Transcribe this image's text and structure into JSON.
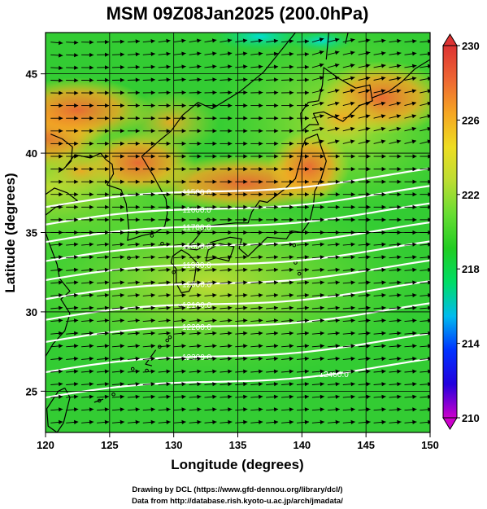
{
  "title": "MSM 09Z08Jan2025 (200.0hPa)",
  "xlabel": "Longitude (degrees)",
  "ylabel": "Latitude (degrees)",
  "credits": [
    "Drawing by DCL (https://www.gfd-dennou.org/library/dcl/)",
    "Data from http://database.rish.kyoto-u.ac.jp/arch/jmadata/"
  ],
  "map": {
    "lon_range": [
      120,
      150
    ],
    "lat_range": [
      22.4,
      47.6
    ],
    "lon_ticks": [
      120,
      125,
      130,
      135,
      140,
      145,
      150
    ],
    "lat_ticks": [
      25,
      30,
      35,
      40,
      45
    ],
    "grid": true
  },
  "colorbar": {
    "min": 210,
    "max": 230,
    "ticks": [
      210,
      214,
      218,
      222,
      226,
      230
    ],
    "colors": [
      "#cc00cc",
      "#2200dd",
      "#0033ff",
      "#00bbee",
      "#00dd66",
      "#22cc22",
      "#66dd33",
      "#bbdd33",
      "#eedd22",
      "#f5a623",
      "#ee6633",
      "#dd3333"
    ]
  },
  "contours": [
    {
      "label": "11500.0",
      "lat0": 36.6
    },
    {
      "label": "11600.0",
      "lat0": 35.5
    },
    {
      "label": "11700.0",
      "lat0": 34.4
    },
    {
      "label": "11800.0",
      "lat0": 33.2
    },
    {
      "label": "11900.0",
      "lat0": 32.0
    },
    {
      "label": "12000.0",
      "lat0": 30.8
    },
    {
      "label": "12100.0",
      "lat0": 29.5
    },
    {
      "label": "12200.0",
      "lat0": 28.1
    },
    {
      "label": "12300.0",
      "lat0": 26.2
    },
    {
      "label": "12400.0",
      "lat0": 24.6
    }
  ]
}
